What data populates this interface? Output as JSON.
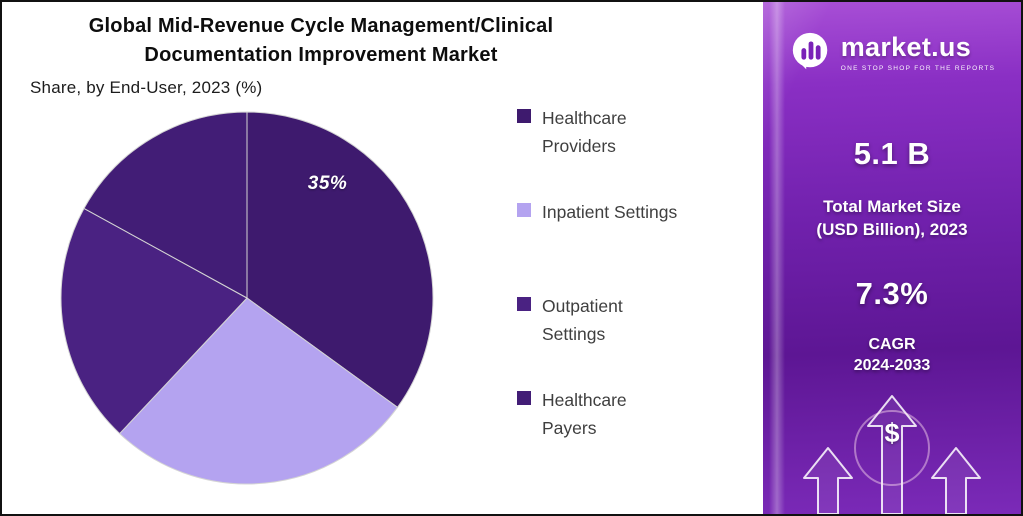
{
  "title_line1": "Global Mid-Revenue Cycle Management/Clinical",
  "title_line2": "Documentation Improvement Market",
  "subtitle": "Share, by End-User, 2023 (%)",
  "chart_data": {
    "type": "pie",
    "title": "Global Mid-Revenue Cycle Management/Clinical Documentation Improvement Market",
    "subtitle": "Share, by End-User, 2023 (%)",
    "categories": [
      "Healthcare Providers",
      "Inpatient Settings",
      "Outpatient Settings",
      "Healthcare Payers"
    ],
    "values": [
      35,
      27,
      21,
      17
    ],
    "colors": [
      "#3E1A6E",
      "#B4A3F0",
      "#4A2282",
      "#421D76"
    ],
    "data_labels": [
      "35%",
      "",
      "",
      ""
    ],
    "start_angle_deg": 0,
    "direction": "clockwise",
    "legend_position": "right",
    "legend": [
      {
        "line1": "Healthcare",
        "line2": "Providers"
      },
      {
        "line1": "Inpatient Settings",
        "line2": ""
      },
      {
        "line1": "Outpatient",
        "line2": "Settings"
      },
      {
        "line1": "Healthcare",
        "line2": "Payers"
      }
    ]
  },
  "brand_panel": {
    "brand": "market.us",
    "tagline": "ONE STOP SHOP FOR THE REPORTS",
    "market_size_value": "5.1 B",
    "market_size_label_line1": "Total Market Size",
    "market_size_label_line2": "(USD Billion), 2023",
    "cagr_value": "7.3%",
    "cagr_label_line1": "CAGR",
    "cagr_label_line2": "2024-2033",
    "dollar_symbol": "$",
    "accent_color": "#7A22B8"
  }
}
